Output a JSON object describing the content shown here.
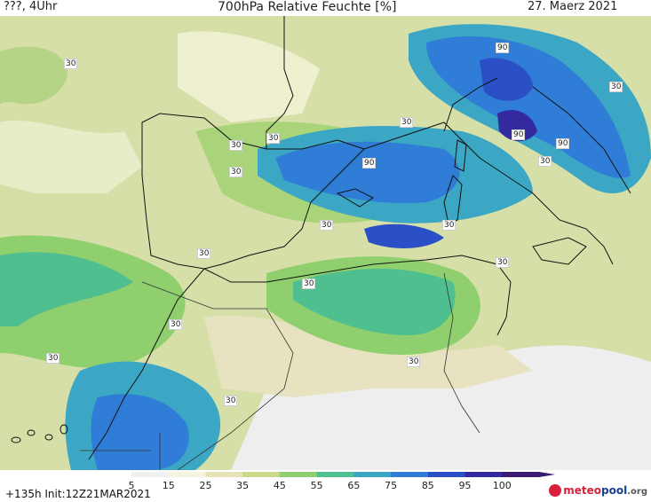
{
  "header": {
    "left": "???, 4Uhr",
    "center": "700hPa Relative Feuchte [%]",
    "right": "27. Maerz 2021"
  },
  "map": {
    "contour_labels": [
      "30",
      "30",
      "30",
      "30",
      "30",
      "30",
      "30",
      "30",
      "30",
      "30",
      "30",
      "30",
      "30",
      "30",
      "90",
      "90",
      "90",
      "90",
      "30",
      "30"
    ]
  },
  "colorbar": {
    "ticks": [
      "5",
      "15",
      "25",
      "35",
      "45",
      "55",
      "65",
      "75",
      "85",
      "95",
      "100"
    ],
    "colors": [
      "#f0f0f0",
      "#f6f3df",
      "#e7e3b9",
      "#c9d98a",
      "#8fcf6e",
      "#4fbf8f",
      "#3ba7c4",
      "#2f7dd6",
      "#2a4fc7",
      "#322a9e",
      "#3a1a72"
    ]
  },
  "footer": {
    "run": "+135h  Init:12Z21MAR2021",
    "logo_text": "meteopool.org",
    "logo_parts": [
      "meteo",
      "pool",
      ".org"
    ]
  }
}
